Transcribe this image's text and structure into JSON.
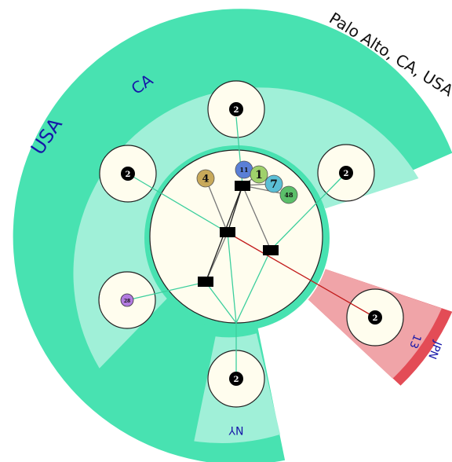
{
  "colors": {
    "usa_outer": "#48e2b1",
    "usa_inner": "#a0f0d8",
    "jpn_outer": "#e34c56",
    "jpn_inner": "#f0a4a8",
    "cluster_fill": "#fffdee",
    "link_green": "#3ccf9d",
    "link_gray": "#777777",
    "link_dark": "#222222",
    "link_red": "#c21b1b",
    "label_blue": "#1616a8"
  },
  "regions": {
    "usa": "USA",
    "ca": "CA",
    "ny": "NY",
    "palo_alto": "Palo Alto, CA, USA",
    "jpn": "JPN",
    "jp_13": "13"
  },
  "pods": {
    "top": "2",
    "upper_left": "2",
    "upper_right": "2",
    "lower_left": "28",
    "bottom": "2",
    "jpn": "2"
  },
  "badges": [
    "11",
    "1",
    "7",
    "48",
    "4"
  ]
}
